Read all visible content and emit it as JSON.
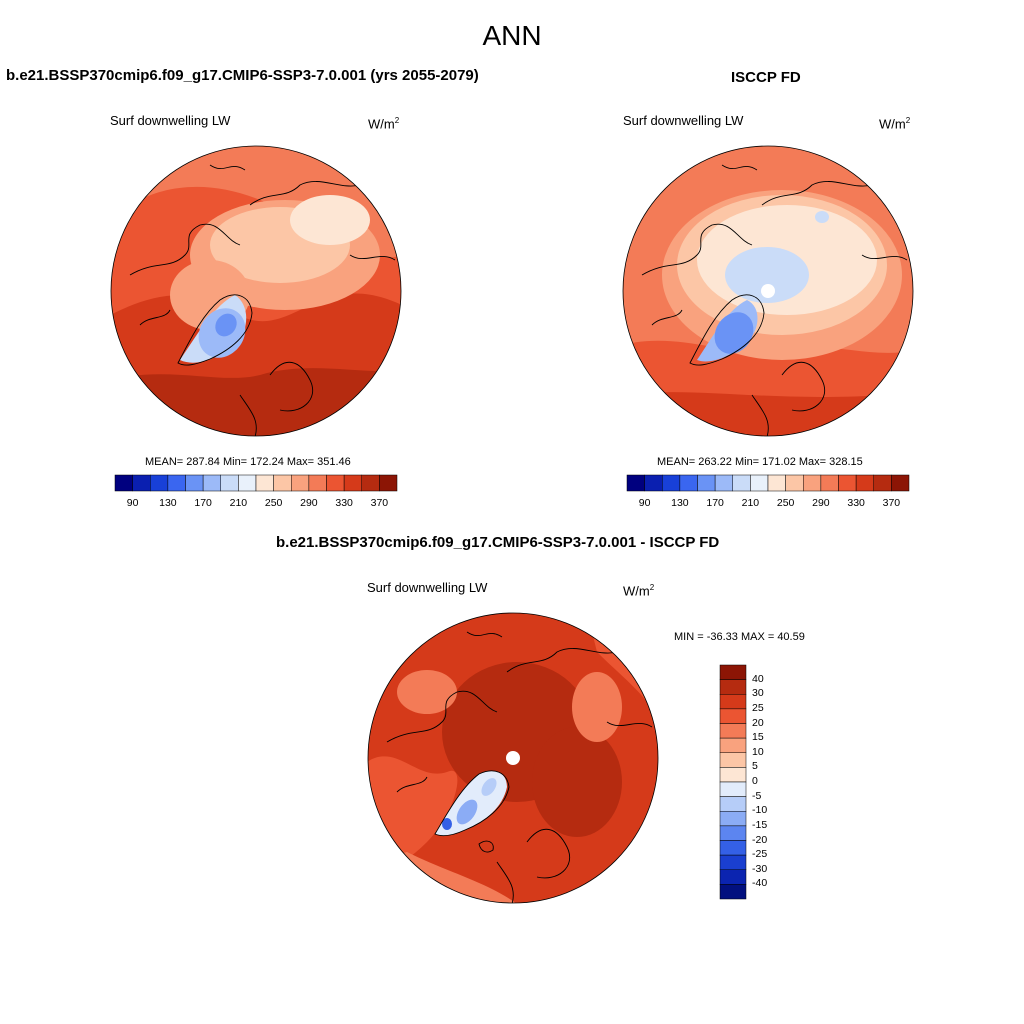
{
  "title": "ANN",
  "panels": {
    "top_left": {
      "title": "b.e21.BSSP370cmip6.f09_g17.CMIP6-SSP3-7.0.001 (yrs 2055-2079)",
      "variable": "Surf downwelling LW",
      "units": "W/m",
      "units_sup": "2",
      "stats": "MEAN= 287.84  Min= 172.24  Max= 351.46"
    },
    "top_right": {
      "title": "ISCCP FD",
      "variable": "Surf downwelling LW",
      "units": "W/m",
      "units_sup": "2",
      "stats": "MEAN= 263.22  Min= 171.02  Max= 328.15"
    },
    "bottom": {
      "title": "b.e21.BSSP370cmip6.f09_g17.CMIP6-SSP3-7.0.001 - ISCCP FD",
      "variable": "Surf downwelling LW",
      "units": "W/m",
      "units_sup": "2",
      "stats": "MIN = -36.33 MAX =  40.59"
    }
  },
  "colorbar_abs": {
    "colors": [
      "#00007f",
      "#0a1fb0",
      "#1840d8",
      "#3a66f0",
      "#6a93f5",
      "#9cbaf8",
      "#cadcf8",
      "#e9f1fb",
      "#fde6d4",
      "#fcc6a6",
      "#f9a27e",
      "#f37b57",
      "#eb5532",
      "#d53a1a",
      "#b52b10",
      "#8c1505"
    ],
    "tick_labels": [
      "90",
      "130",
      "170",
      "210",
      "250",
      "290",
      "330",
      "370"
    ]
  },
  "colorbar_diff": {
    "colors": [
      "#8c1505",
      "#b52b10",
      "#d53a1a",
      "#eb5532",
      "#f37b57",
      "#f9a27e",
      "#fcc6a6",
      "#fde6d4",
      "#e2ecfb",
      "#b6cdf8",
      "#8bacf5",
      "#5c85f0",
      "#3460e6",
      "#1a3fd0",
      "#0b24b0",
      "#02107f"
    ],
    "tick_labels": [
      "40",
      "30",
      "25",
      "20",
      "15",
      "10",
      "5",
      "0",
      "-5",
      "-10",
      "-15",
      "-20",
      "-25",
      "-30",
      "-40"
    ]
  }
}
